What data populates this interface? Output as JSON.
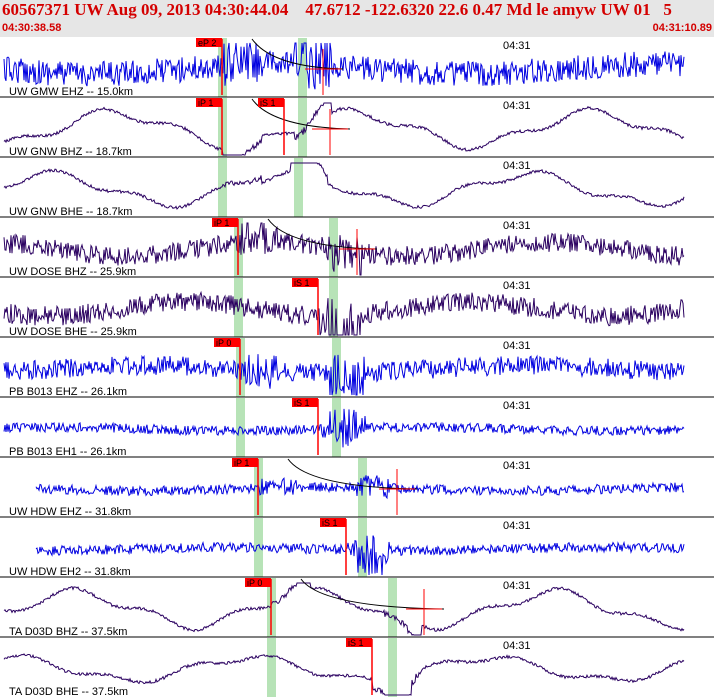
{
  "header": {
    "title": "60567371 UW Aug 09, 2013 04:30:44.04    47.6712 -122.6320 22.6 0.47 Md le amyw UW 01   5",
    "start_time": "04:30:38.58",
    "end_time": "04:31:10.89"
  },
  "colors": {
    "header_text": "#d40000",
    "blue_trace": "#0000e0",
    "dark_trace": "#2a0060",
    "pick_box": "#ff0000",
    "window": "#b7e3b7"
  },
  "traces": [
    {
      "label": "UW GMW EHZ -- 15.0km",
      "time_label": "04:31",
      "color": "blue",
      "style": "noise",
      "amp": 16,
      "pick": {
        "label": "eP 2",
        "t": 222
      },
      "window_t": [
        222,
        302
      ],
      "curve": true,
      "marker_t": 323
    },
    {
      "label": "UW GNW BHZ -- 18.7km",
      "time_label": "04:31",
      "color": "dark",
      "style": "wave",
      "amp": 20,
      "pick": {
        "label": "iP 1",
        "t": 222
      },
      "window_t": [
        222,
        302
      ],
      "curve": true,
      "marker_t": 330,
      "pick2": {
        "label": "iS 1",
        "t": 284
      }
    },
    {
      "label": "UW GNW BHE -- 18.7km",
      "time_label": "04:31",
      "color": "dark",
      "style": "wave",
      "amp": 18,
      "pick": null,
      "window_t": [
        222,
        298
      ],
      "curve": false,
      "marker_t": null
    },
    {
      "label": "UW DOSE BHZ -- 25.9km",
      "time_label": "04:31",
      "color": "dark",
      "style": "mixed",
      "amp": 14,
      "pick": {
        "label": "iP 1",
        "t": 238
      },
      "window_t": [
        238,
        333
      ],
      "curve": true,
      "marker_t": 357
    },
    {
      "label": "UW DOSE BHE -- 25.9km",
      "time_label": "04:31",
      "color": "dark",
      "style": "mixed",
      "amp": 14,
      "pick": {
        "label": "iS 1",
        "t": 318
      },
      "window_t": [
        238,
        333
      ],
      "curve": false,
      "marker_t": null
    },
    {
      "label": "PB B013 EHZ -- 26.1km",
      "time_label": "04:31",
      "color": "blue",
      "style": "noise",
      "amp": 12,
      "pick": {
        "label": "iP 0",
        "t": 240
      },
      "window_t": [
        240,
        336
      ],
      "curve": false,
      "marker_t": null
    },
    {
      "label": "PB B013 EH1 -- 26.1km",
      "time_label": "04:31",
      "color": "blue",
      "style": "noise",
      "amp": 6,
      "pick": {
        "label": "iS 1",
        "t": 318
      },
      "window_t": [
        240,
        336
      ],
      "curve": false,
      "marker_t": null
    },
    {
      "label": "UW HDW EHZ -- 31.8km",
      "time_label": "04:31",
      "color": "blue",
      "style": "noise",
      "amp": 6,
      "pick": {
        "label": "iP 1",
        "t": 258
      },
      "window_t": [
        258,
        362
      ],
      "curve": true,
      "marker_t": 397
    },
    {
      "label": "UW HDW EH2 -- 31.8km",
      "time_label": "04:31",
      "color": "blue",
      "style": "noise",
      "amp": 6,
      "pick": {
        "label": "iS 1",
        "t": 346
      },
      "window_t": [
        258,
        362
      ],
      "curve": false,
      "marker_t": null
    },
    {
      "label": "TA D03D BHZ -- 37.5km",
      "time_label": "04:31",
      "color": "dark",
      "style": "wave",
      "amp": 20,
      "pick": {
        "label": "iP 0",
        "t": 271
      },
      "window_t": [
        271,
        392
      ],
      "curve": true,
      "marker_t": 424
    },
    {
      "label": "TA D03D BHE -- 37.5km",
      "time_label": "04:31",
      "color": "dark",
      "style": "wave",
      "amp": 14,
      "pick": {
        "label": "iS 1",
        "t": 372
      },
      "window_t": [
        271,
        392
      ],
      "curve": false,
      "marker_t": null
    }
  ]
}
